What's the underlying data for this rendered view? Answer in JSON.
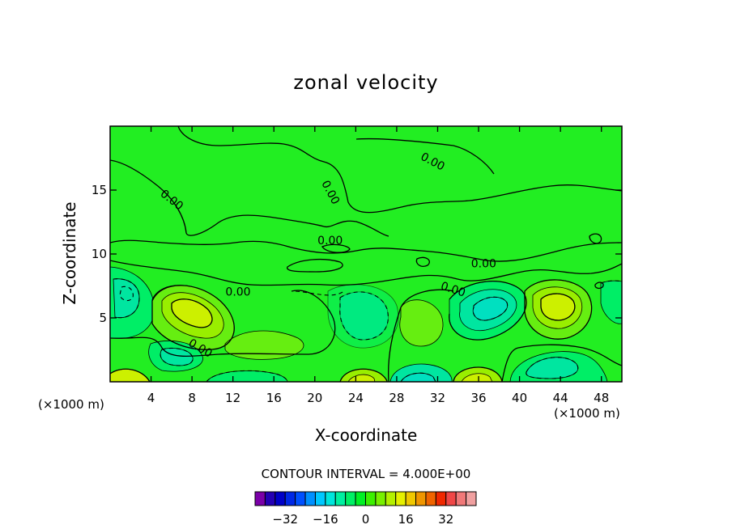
{
  "chart_data": {
    "type": "contour",
    "title": "zonal velocity",
    "xlabel": "X-coordinate",
    "ylabel": "Z-coordinate",
    "x_unit_left": "(×1000 m)",
    "x_unit_right": "(×1000 m)",
    "xlim": [
      0,
      50
    ],
    "ylim": [
      0,
      20
    ],
    "x_ticks": [
      4,
      8,
      12,
      16,
      20,
      24,
      28,
      32,
      36,
      40,
      44,
      48
    ],
    "y_ticks": [
      5,
      10,
      15
    ],
    "contour_interval_text": "CONTOUR INTERVAL = 4.000E+00",
    "contour_labels": [
      {
        "text": "0.00",
        "x": 6.0,
        "z": 14.2,
        "angle": 38
      },
      {
        "text": "0.00",
        "x": 21.5,
        "z": 14.8,
        "angle": 62
      },
      {
        "text": "0.00",
        "x": 31.5,
        "z": 17.2,
        "angle": 28
      },
      {
        "text": "0.00",
        "x": 21.5,
        "z": 11.0,
        "angle": 0
      },
      {
        "text": "0.00",
        "x": 36.5,
        "z": 9.2,
        "angle": 0
      },
      {
        "text": "0.00",
        "x": 33.5,
        "z": 7.2,
        "angle": 18
      },
      {
        "text": "0.00",
        "x": 12.5,
        "z": 7.0,
        "angle": 0
      },
      {
        "text": "0.00",
        "x": 8.8,
        "z": 2.6,
        "angle": 30
      }
    ],
    "colorbar": {
      "colors": [
        "#7a00a8",
        "#2400b4",
        "#0000c8",
        "#0028e6",
        "#0050ff",
        "#0090ff",
        "#00c8ff",
        "#00e6dc",
        "#00f0a0",
        "#00f064",
        "#00f024",
        "#3cf000",
        "#78f000",
        "#b4f000",
        "#e6f000",
        "#f0c800",
        "#f09600",
        "#f06400",
        "#f02800",
        "#f04646",
        "#f07878",
        "#f0a0a0"
      ],
      "tick_labels": [
        "-32",
        "-16",
        "0",
        "16",
        "32"
      ],
      "tick_values": [
        -32,
        -16,
        0,
        16,
        32
      ],
      "min": -44,
      "max": 44
    },
    "field_colors": {
      "background": "#22ee22",
      "neg_light": "#00ee66",
      "neg_mid": "#00e6a0",
      "neg_strong": "#00e0c0",
      "pos_light": "#66ee11",
      "pos_mid": "#99ee00",
      "pos_strong": "#ccf000"
    }
  }
}
